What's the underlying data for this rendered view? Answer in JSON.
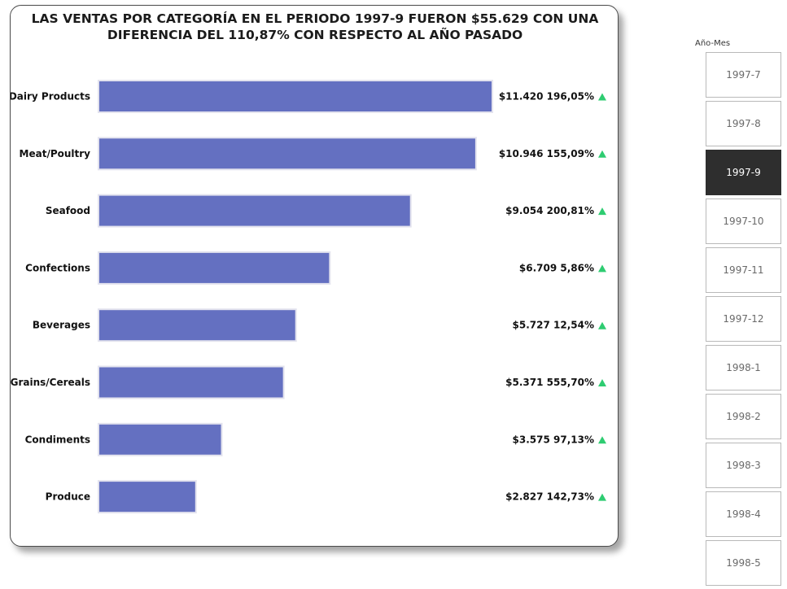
{
  "chart_data": {
    "type": "bar",
    "orientation": "horizontal",
    "title": "LAS VENTAS POR CATEGORÍA EN EL PERIODO 1997-9 FUERON $55.629 CON UNA DIFERENCIA DEL 110,87% CON RESPECTO AL AÑO PASADO",
    "categories": [
      "Dairy Products",
      "Meat/Poultry",
      "Seafood",
      "Confections",
      "Beverages",
      "Grains/Cereals",
      "Condiments",
      "Produce"
    ],
    "values": [
      11420,
      10946,
      9054,
      6709,
      5727,
      5371,
      3575,
      2827
    ],
    "value_labels": [
      "$11.420 196,05%",
      "$10.946 155,09%",
      "$9.054 200,81%",
      "$6.709 5,86%",
      "$5.727 12,54%",
      "$5.371 555,70%",
      "$3.575 97,13%",
      "$2.827 142,73%"
    ],
    "xlim": [
      0,
      11420
    ],
    "grid": false,
    "legend": "none",
    "bar_color": "#6470C1",
    "trend_icon": "up-triangle-icon",
    "trend_color": "#2ECC71"
  },
  "slicer": {
    "title": "Año-Mes",
    "items": [
      "1997-7",
      "1997-8",
      "1997-9",
      "1997-10",
      "1997-11",
      "1997-12",
      "1998-1",
      "1998-2",
      "1998-3",
      "1998-4",
      "1998-5"
    ],
    "selected": "1997-9",
    "selected_color": "#2E2E2E"
  }
}
